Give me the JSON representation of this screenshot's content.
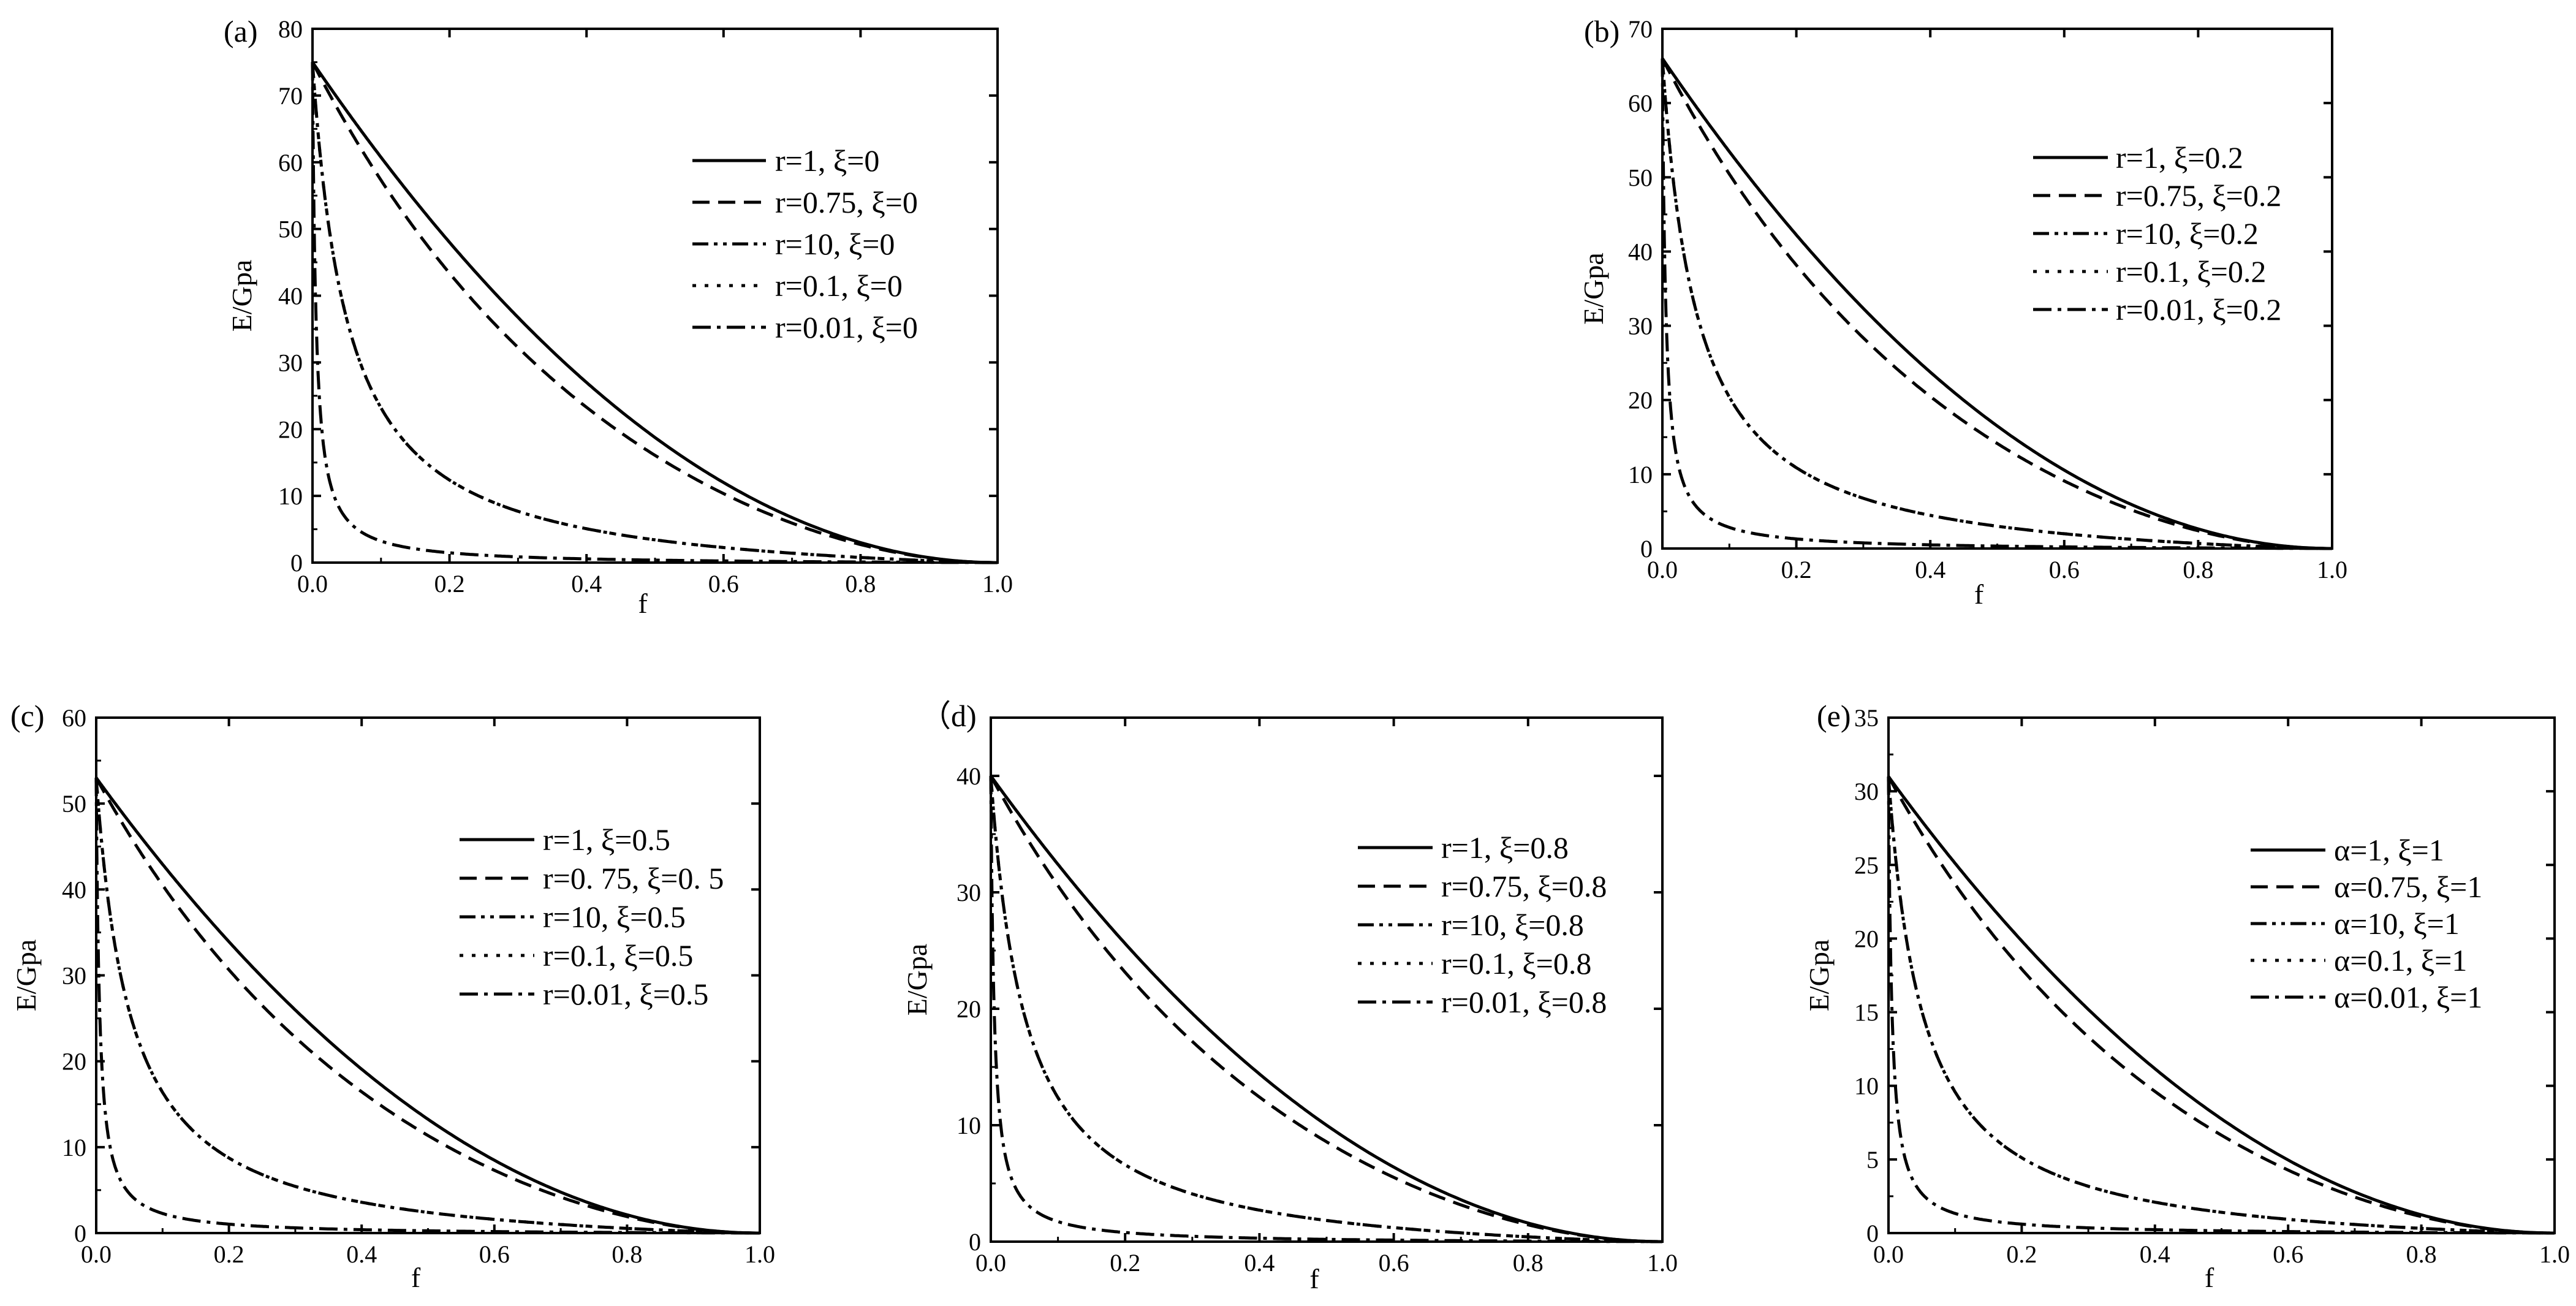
{
  "figure": {
    "colors": {
      "background": "#ffffff",
      "ink": "#000000"
    }
  },
  "chart_data": [
    {
      "type": "line",
      "panel_label": "(a)",
      "xlabel": "f",
      "ylabel": "E/Gpa",
      "xlim": [
        0,
        1.0
      ],
      "ylim": [
        0,
        80
      ],
      "x_ticks": [
        "0.0",
        "0.2",
        "0.4",
        "0.6",
        "0.8",
        "1.0"
      ],
      "y_ticks": [
        "0",
        "10",
        "20",
        "30",
        "40",
        "50",
        "60",
        "70",
        "80"
      ],
      "legend_position": "upper-right",
      "series": [
        {
          "name": "r=1, ξ=0",
          "style": "solid",
          "E0": 75,
          "r": 1
        },
        {
          "name": "r=0.75, ξ=0",
          "style": "dash",
          "E0": 75,
          "r": 0.75
        },
        {
          "name": "r=10, ξ=0",
          "style": "dashdotdot",
          "E0": 75,
          "r": 10
        },
        {
          "name": "r=0.1, ξ=0",
          "style": "dot",
          "E0": 75,
          "r": 0.1
        },
        {
          "name": "r=0.01, ξ=0",
          "style": "dashdot",
          "E0": 75,
          "r": 0.01
        }
      ]
    },
    {
      "type": "line",
      "panel_label": "(b)",
      "xlabel": "f",
      "ylabel": "E/Gpa",
      "xlim": [
        0,
        1.0
      ],
      "ylim": [
        0,
        70
      ],
      "x_ticks": [
        "0.0",
        "0.2",
        "0.4",
        "0.6",
        "0.8",
        "1.0"
      ],
      "y_ticks": [
        "0",
        "10",
        "20",
        "30",
        "40",
        "50",
        "60",
        "70"
      ],
      "legend_position": "upper-right",
      "series": [
        {
          "name": "r=1, ξ=0.2",
          "style": "solid",
          "E0": 66,
          "r": 1
        },
        {
          "name": "r=0.75, ξ=0.2",
          "style": "dash",
          "E0": 66,
          "r": 0.75
        },
        {
          "name": "r=10, ξ=0.2",
          "style": "dashdotdot",
          "E0": 66,
          "r": 10
        },
        {
          "name": "r=0.1, ξ=0.2",
          "style": "dot",
          "E0": 66,
          "r": 0.1
        },
        {
          "name": "r=0.01, ξ=0.2",
          "style": "dashdot",
          "E0": 66,
          "r": 0.01
        }
      ]
    },
    {
      "type": "line",
      "panel_label": "(c)",
      "xlabel": "f",
      "ylabel": "E/Gpa",
      "xlim": [
        0,
        1.0
      ],
      "ylim": [
        0,
        60
      ],
      "x_ticks": [
        "0.0",
        "0.2",
        "0.4",
        "0.6",
        "0.8",
        "1.0"
      ],
      "y_ticks": [
        "0",
        "10",
        "20",
        "30",
        "40",
        "50",
        "60"
      ],
      "legend_position": "upper-right",
      "series": [
        {
          "name": "r=1, ξ=0.5",
          "style": "solid",
          "E0": 53,
          "r": 1
        },
        {
          "name": "r=0. 75, ξ=0. 5",
          "style": "dash",
          "E0": 53,
          "r": 0.75
        },
        {
          "name": "r=10, ξ=0.5",
          "style": "dashdotdot",
          "E0": 53,
          "r": 10
        },
        {
          "name": "r=0.1, ξ=0.5",
          "style": "dot",
          "E0": 53,
          "r": 0.1
        },
        {
          "name": "r=0.01, ξ=0.5",
          "style": "dashdot",
          "E0": 53,
          "r": 0.01
        }
      ]
    },
    {
      "type": "line",
      "panel_label": "（d)",
      "xlabel": "f",
      "ylabel": "E/Gpa",
      "xlim": [
        0,
        1.0
      ],
      "ylim": [
        0,
        45
      ],
      "x_ticks": [
        "0.0",
        "0.2",
        "0.4",
        "0.6",
        "0.8",
        "1.0"
      ],
      "y_ticks": [
        "0",
        "10",
        "20",
        "30",
        "40"
      ],
      "legend_position": "upper-right",
      "series": [
        {
          "name": "r=1, ξ=0.8",
          "style": "solid",
          "E0": 40,
          "r": 1
        },
        {
          "name": "r=0.75, ξ=0.8",
          "style": "dash",
          "E0": 40,
          "r": 0.75
        },
        {
          "name": "r=10, ξ=0.8",
          "style": "dashdotdot",
          "E0": 40,
          "r": 10
        },
        {
          "name": "r=0.1, ξ=0.8",
          "style": "dot",
          "E0": 40,
          "r": 0.1
        },
        {
          "name": "r=0.01, ξ=0.8",
          "style": "dashdot",
          "E0": 40,
          "r": 0.01
        }
      ]
    },
    {
      "type": "line",
      "panel_label": "(e)",
      "xlabel": "f",
      "ylabel": "E/Gpa",
      "xlim": [
        0,
        1.0
      ],
      "ylim": [
        0,
        35
      ],
      "x_ticks": [
        "0.0",
        "0.2",
        "0.4",
        "0.6",
        "0.8",
        "1.0"
      ],
      "y_ticks": [
        "0",
        "5",
        "10",
        "15",
        "20",
        "25",
        "30",
        "35"
      ],
      "legend_position": "upper-right",
      "series": [
        {
          "name": "α=1, ξ=1",
          "style": "solid",
          "E0": 31,
          "r": 1
        },
        {
          "name": "α=0.75, ξ=1",
          "style": "dash",
          "E0": 31,
          "r": 0.75
        },
        {
          "name": "α=10, ξ=1",
          "style": "dashdotdot",
          "E0": 31,
          "r": 10
        },
        {
          "name": "α=0.1, ξ=1",
          "style": "dot",
          "E0": 31,
          "r": 0.1
        },
        {
          "name": "α=0.01, ξ=1",
          "style": "dashdot",
          "E0": 31,
          "r": 0.01
        }
      ]
    }
  ]
}
